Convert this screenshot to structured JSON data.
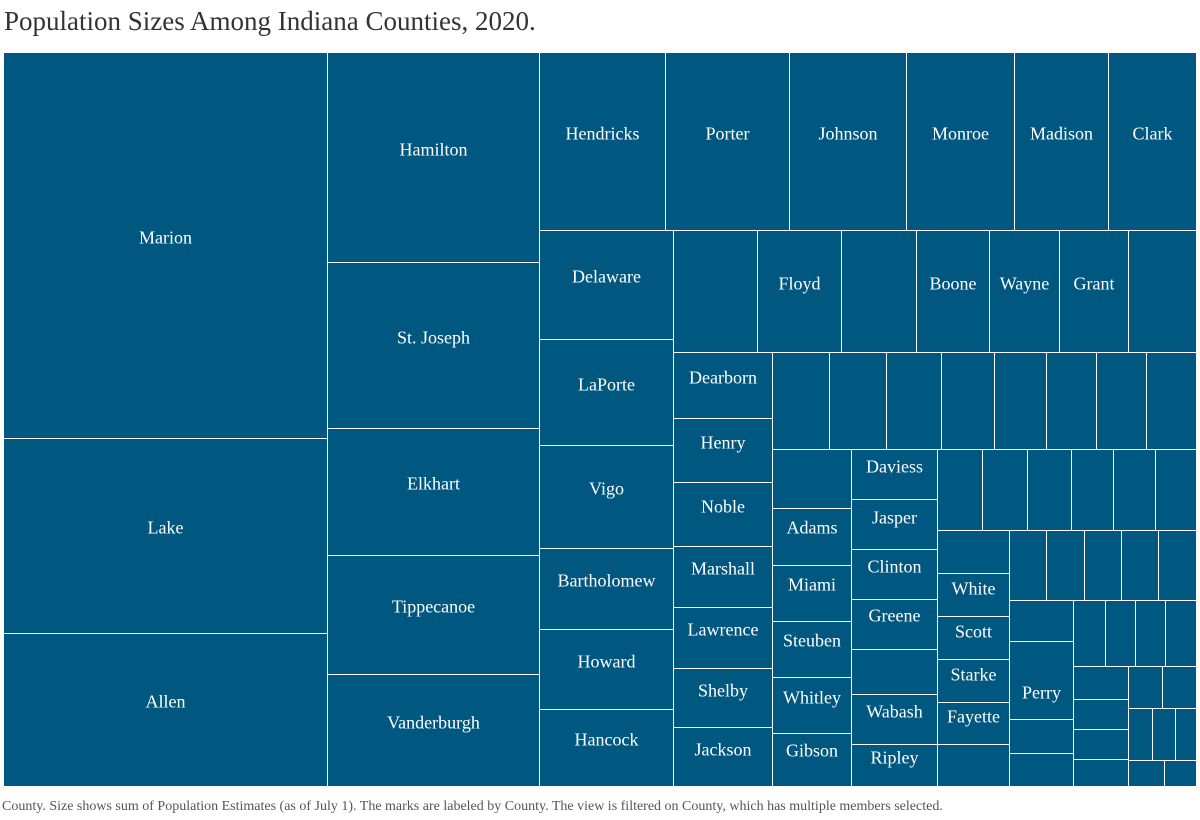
{
  "title": "Population Sizes Among Indiana Counties, 2020.",
  "caption": "County.  Size shows sum of Population Estimates  (as of July 1).  The marks are labeled by County. The view is filtered on County, which has multiple members selected.",
  "colors": {
    "fill": "#00577f",
    "border": "#ffffff",
    "label": "#ffffff"
  },
  "chart_data": {
    "type": "treemap",
    "title": "Population Sizes Among Indiana Counties, 2020.",
    "measure": "sum of Population Estimates  (as of July 1)",
    "dimension": "County",
    "labeled_counties": [
      "Marion",
      "Lake",
      "Allen",
      "Hamilton",
      "St. Joseph",
      "Elkhart",
      "Tippecanoe",
      "Vanderburgh",
      "Hendricks",
      "Porter",
      "Johnson",
      "Monroe",
      "Madison",
      "Clark",
      "Delaware",
      "LaPorte",
      "Vigo",
      "Bartholomew",
      "Howard",
      "Hancock",
      "Floyd",
      "Boone",
      "Wayne",
      "Grant",
      "Dearborn",
      "Henry",
      "Noble",
      "Marshall",
      "Lawrence",
      "Shelby",
      "Jackson",
      "Adams",
      "Miami",
      "Steuben",
      "Whitley",
      "Gibson",
      "Daviess",
      "Jasper",
      "Clinton",
      "Greene",
      "Wabash",
      "Ripley",
      "White",
      "Scott",
      "Starke",
      "Fayette",
      "Perry"
    ],
    "unlabeled_marks": 46
  }
}
